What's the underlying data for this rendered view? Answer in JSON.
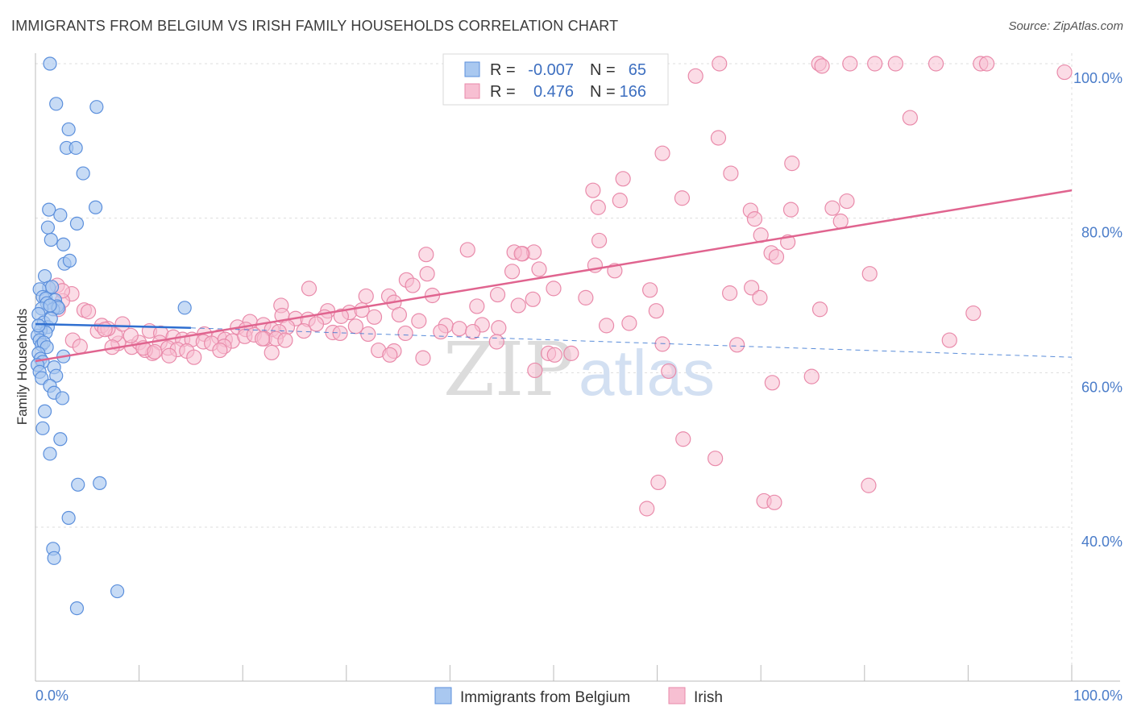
{
  "title": "IMMIGRANTS FROM BELGIUM VS IRISH FAMILY HOUSEHOLDS CORRELATION CHART",
  "source": "Source: ZipAtlas.com",
  "watermark": {
    "zip": "ZIP",
    "atlas": "atlas"
  },
  "colors": {
    "blue_fill": "#a9c8f0",
    "blue_stroke": "#5b8fdc",
    "blue_line": "#2f6fd0",
    "pink_fill": "#f7bfd2",
    "pink_stroke": "#e98aaa",
    "pink_line": "#e0648f",
    "grid": "#dddddd",
    "tick_text": "#4a7cc9"
  },
  "legend": {
    "rows": [
      {
        "r_label": "R =",
        "r_value": "-0.007",
        "n_label": "N =",
        "n_value": "65"
      },
      {
        "r_label": "R =",
        "r_value": "0.476",
        "n_label": "N =",
        "n_value": "166"
      }
    ]
  },
  "chart_data": {
    "type": "scatter",
    "title": "IMMIGRANTS FROM BELGIUM VS IRISH FAMILY HOUSEHOLDS CORRELATION CHART",
    "xlabel": "",
    "ylabel": "Family Households",
    "xlim": [
      0,
      100
    ],
    "ylim": [
      20,
      102
    ],
    "x_tick_labels": [
      "0.0%",
      "100.0%"
    ],
    "y_ticks": [
      40,
      60,
      80,
      100
    ],
    "y_tick_labels": [
      "40.0%",
      "60.0%",
      "80.0%",
      "100.0%"
    ],
    "grid": true,
    "legend_position": "top-center",
    "series": [
      {
        "name": "Immigrants from Belgium",
        "color": "#a9c8f0",
        "trend": {
          "x": [
            0,
            15
          ],
          "y": [
            66.3,
            65.8
          ],
          "dashed_extension_to": [
            100,
            62.0
          ]
        },
        "points": [
          [
            1.4,
            100
          ],
          [
            2.0,
            94.8
          ],
          [
            5.9,
            94.4
          ],
          [
            3.2,
            91.5
          ],
          [
            3.0,
            89.1
          ],
          [
            3.9,
            89.1
          ],
          [
            4.6,
            85.8
          ],
          [
            1.3,
            81.1
          ],
          [
            5.8,
            81.4
          ],
          [
            2.4,
            80.4
          ],
          [
            1.2,
            78.8
          ],
          [
            4.0,
            79.3
          ],
          [
            1.5,
            77.2
          ],
          [
            2.7,
            76.6
          ],
          [
            2.8,
            74.1
          ],
          [
            3.3,
            74.5
          ],
          [
            0.9,
            72.5
          ],
          [
            1.3,
            71.0
          ],
          [
            1.6,
            71.1
          ],
          [
            0.4,
            70.8
          ],
          [
            0.7,
            69.8
          ],
          [
            1.0,
            69.6
          ],
          [
            1.9,
            69.4
          ],
          [
            1.1,
            69.0
          ],
          [
            2.1,
            68.6
          ],
          [
            1.7,
            68.2
          ],
          [
            2.2,
            68.4
          ],
          [
            0.6,
            68.3
          ],
          [
            1.4,
            68.7
          ],
          [
            14.4,
            68.4
          ],
          [
            0.3,
            67.6
          ],
          [
            0.8,
            66.5
          ],
          [
            1.2,
            65.9
          ],
          [
            0.5,
            65.5
          ],
          [
            1.0,
            65.2
          ],
          [
            0.2,
            64.8
          ],
          [
            0.4,
            64.2
          ],
          [
            0.6,
            63.6
          ],
          [
            0.8,
            63.9
          ],
          [
            1.1,
            63.3
          ],
          [
            0.3,
            62.5
          ],
          [
            2.7,
            62.1
          ],
          [
            0.5,
            61.8
          ],
          [
            0.7,
            61.4
          ],
          [
            0.2,
            61.0
          ],
          [
            1.8,
            60.7
          ],
          [
            0.4,
            60.1
          ],
          [
            2.0,
            59.6
          ],
          [
            0.6,
            59.3
          ],
          [
            1.4,
            58.3
          ],
          [
            1.8,
            57.4
          ],
          [
            2.6,
            56.7
          ],
          [
            0.9,
            55.0
          ],
          [
            0.7,
            52.8
          ],
          [
            2.4,
            51.4
          ],
          [
            1.4,
            49.5
          ],
          [
            4.1,
            45.5
          ],
          [
            6.2,
            45.7
          ],
          [
            3.2,
            41.2
          ],
          [
            1.7,
            37.2
          ],
          [
            1.8,
            36.0
          ],
          [
            7.9,
            31.7
          ],
          [
            4.0,
            29.5
          ],
          [
            0.3,
            66.1
          ],
          [
            1.5,
            67.0
          ]
        ]
      },
      {
        "name": "Irish",
        "color": "#f7bfd2",
        "trend": {
          "x": [
            0,
            100
          ],
          "y": [
            61.5,
            83.6
          ]
        },
        "points": [
          [
            59.2,
            100
          ],
          [
            66.0,
            100
          ],
          [
            75.6,
            100
          ],
          [
            75.9,
            99.7
          ],
          [
            78.6,
            100
          ],
          [
            81.0,
            100
          ],
          [
            83.0,
            100
          ],
          [
            86.9,
            100
          ],
          [
            91.2,
            100
          ],
          [
            91.8,
            100
          ],
          [
            63.7,
            98.4
          ],
          [
            99.3,
            98.9
          ],
          [
            84.4,
            93.0
          ],
          [
            65.9,
            90.4
          ],
          [
            60.5,
            88.4
          ],
          [
            73.0,
            87.1
          ],
          [
            67.1,
            85.8
          ],
          [
            56.7,
            85.1
          ],
          [
            53.8,
            83.6
          ],
          [
            62.4,
            82.6
          ],
          [
            56.4,
            82.3
          ],
          [
            78.3,
            82.2
          ],
          [
            54.3,
            81.4
          ],
          [
            76.9,
            81.3
          ],
          [
            69.0,
            81.0
          ],
          [
            72.9,
            81.1
          ],
          [
            69.4,
            79.9
          ],
          [
            77.7,
            79.6
          ],
          [
            70.0,
            77.8
          ],
          [
            54.4,
            77.1
          ],
          [
            72.6,
            76.9
          ],
          [
            41.7,
            75.9
          ],
          [
            47.0,
            75.4
          ],
          [
            46.2,
            75.6
          ],
          [
            48.1,
            75.6
          ],
          [
            46.9,
            75.4
          ],
          [
            37.7,
            75.3
          ],
          [
            71.0,
            75.5
          ],
          [
            71.5,
            75.0
          ],
          [
            37.8,
            72.8
          ],
          [
            54.0,
            73.9
          ],
          [
            48.6,
            73.4
          ],
          [
            55.9,
            73.2
          ],
          [
            46.0,
            73.1
          ],
          [
            80.5,
            72.8
          ],
          [
            35.8,
            72.0
          ],
          [
            36.4,
            71.3
          ],
          [
            26.4,
            70.9
          ],
          [
            50.0,
            70.9
          ],
          [
            59.3,
            70.7
          ],
          [
            69.1,
            71.0
          ],
          [
            67.0,
            70.3
          ],
          [
            44.6,
            70.1
          ],
          [
            38.3,
            70.0
          ],
          [
            31.9,
            69.9
          ],
          [
            34.1,
            69.9
          ],
          [
            48.0,
            69.5
          ],
          [
            69.9,
            69.7
          ],
          [
            53.1,
            69.7
          ],
          [
            34.6,
            69.1
          ],
          [
            46.6,
            68.7
          ],
          [
            42.6,
            68.6
          ],
          [
            28.2,
            68.0
          ],
          [
            30.3,
            67.8
          ],
          [
            31.5,
            68.1
          ],
          [
            35.1,
            67.5
          ],
          [
            59.9,
            68.0
          ],
          [
            75.7,
            68.2
          ],
          [
            90.5,
            67.7
          ],
          [
            23.7,
            68.7
          ],
          [
            23.8,
            67.4
          ],
          [
            25.1,
            67.0
          ],
          [
            26.3,
            66.9
          ],
          [
            27.9,
            67.2
          ],
          [
            29.5,
            67.3
          ],
          [
            32.7,
            67.2
          ],
          [
            20.7,
            66.6
          ],
          [
            22.0,
            66.2
          ],
          [
            24.3,
            65.9
          ],
          [
            27.1,
            66.3
          ],
          [
            30.9,
            66.0
          ],
          [
            37.0,
            66.7
          ],
          [
            39.6,
            66.1
          ],
          [
            40.9,
            65.7
          ],
          [
            43.1,
            66.2
          ],
          [
            44.7,
            65.8
          ],
          [
            55.1,
            66.1
          ],
          [
            57.3,
            66.4
          ],
          [
            19.5,
            65.9
          ],
          [
            20.3,
            65.6
          ],
          [
            22.8,
            65.6
          ],
          [
            23.5,
            65.3
          ],
          [
            25.9,
            65.4
          ],
          [
            28.7,
            65.2
          ],
          [
            29.4,
            65.1
          ],
          [
            32.1,
            65.0
          ],
          [
            35.7,
            65.1
          ],
          [
            39.1,
            65.3
          ],
          [
            42.2,
            65.3
          ],
          [
            16.3,
            65.0
          ],
          [
            17.7,
            64.6
          ],
          [
            18.3,
            64.3
          ],
          [
            19.0,
            64.1
          ],
          [
            20.2,
            64.7
          ],
          [
            21.1,
            64.9
          ],
          [
            22.1,
            64.4
          ],
          [
            23.2,
            64.4
          ],
          [
            24.1,
            64.2
          ],
          [
            11.0,
            65.4
          ],
          [
            12.1,
            65.1
          ],
          [
            13.3,
            64.6
          ],
          [
            14.2,
            64.3
          ],
          [
            15.1,
            64.3
          ],
          [
            16.2,
            64.0
          ],
          [
            17.0,
            63.8
          ],
          [
            18.2,
            63.4
          ],
          [
            9.3,
            63.3
          ],
          [
            10.0,
            63.9
          ],
          [
            8.0,
            63.8
          ],
          [
            7.7,
            64.9
          ],
          [
            12.0,
            63.9
          ],
          [
            12.8,
            63.2
          ],
          [
            13.7,
            63.0
          ],
          [
            14.6,
            62.8
          ],
          [
            11.3,
            62.5
          ],
          [
            10.6,
            62.9
          ],
          [
            6.0,
            65.4
          ],
          [
            8.4,
            66.3
          ],
          [
            6.4,
            66.1
          ],
          [
            7.0,
            65.7
          ],
          [
            9.2,
            64.8
          ],
          [
            10.4,
            63.2
          ],
          [
            11.5,
            62.7
          ],
          [
            12.9,
            62.2
          ],
          [
            2.1,
            71.3
          ],
          [
            3.5,
            70.2
          ],
          [
            2.6,
            69.3
          ],
          [
            2.2,
            68.2
          ],
          [
            4.7,
            68.1
          ],
          [
            2.6,
            70.6
          ],
          [
            5.1,
            67.9
          ],
          [
            6.7,
            65.6
          ],
          [
            7.4,
            63.3
          ],
          [
            3.6,
            64.2
          ],
          [
            4.3,
            63.4
          ],
          [
            15.3,
            62.0
          ],
          [
            17.8,
            62.9
          ],
          [
            22.8,
            62.6
          ],
          [
            33.1,
            62.9
          ],
          [
            34.6,
            62.8
          ],
          [
            37.4,
            61.9
          ],
          [
            51.7,
            62.5
          ],
          [
            60.5,
            63.7
          ],
          [
            67.7,
            63.6
          ],
          [
            88.2,
            64.2
          ],
          [
            49.5,
            62.5
          ],
          [
            50.1,
            62.3
          ],
          [
            48.2,
            60.3
          ],
          [
            61.1,
            60.2
          ],
          [
            71.1,
            58.7
          ],
          [
            74.9,
            59.5
          ],
          [
            62.5,
            51.4
          ],
          [
            65.6,
            48.9
          ],
          [
            60.1,
            45.8
          ],
          [
            59.0,
            42.4
          ],
          [
            70.3,
            43.4
          ],
          [
            71.3,
            43.2
          ],
          [
            80.4,
            45.4
          ],
          [
            44.5,
            64.0
          ],
          [
            21.9,
            64.4
          ],
          [
            34.2,
            62.3
          ]
        ]
      }
    ]
  },
  "bottom_legend": [
    {
      "label": "Immigrants from Belgium"
    },
    {
      "label": "Irish"
    }
  ]
}
